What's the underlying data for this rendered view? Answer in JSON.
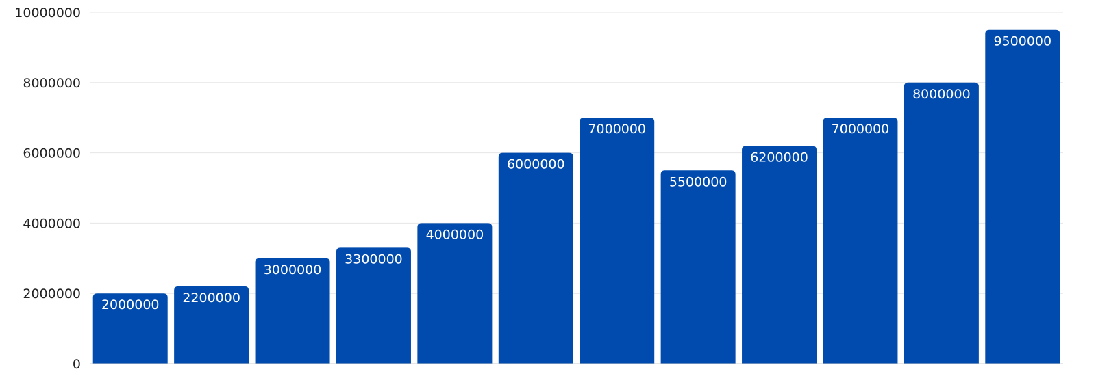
{
  "chart_data": {
    "type": "bar",
    "title": "",
    "xlabel": "",
    "ylabel": "",
    "categories": [
      "",
      "",
      "",
      "",
      "",
      "",
      "",
      "",
      "",
      "",
      "",
      ""
    ],
    "values": [
      2000000,
      2200000,
      3000000,
      3300000,
      4000000,
      6000000,
      7000000,
      5500000,
      6200000,
      7000000,
      8000000,
      9500000
    ],
    "data_labels": [
      "2000000",
      "2200000",
      "3000000",
      "3300000",
      "4000000",
      "6000000",
      "7000000",
      "5500000",
      "6200000",
      "7000000",
      "8000000",
      "9500000"
    ],
    "ylim": [
      0,
      10000000
    ],
    "yticks": [
      0,
      2000000,
      4000000,
      6000000,
      8000000,
      10000000
    ],
    "ytick_labels": [
      "0",
      "2000000",
      "4000000",
      "6000000",
      "8000000",
      "10000000"
    ],
    "grid": true,
    "legend": "none",
    "bar_color": "#004BAD",
    "grid_color": "#E6E6E6"
  }
}
